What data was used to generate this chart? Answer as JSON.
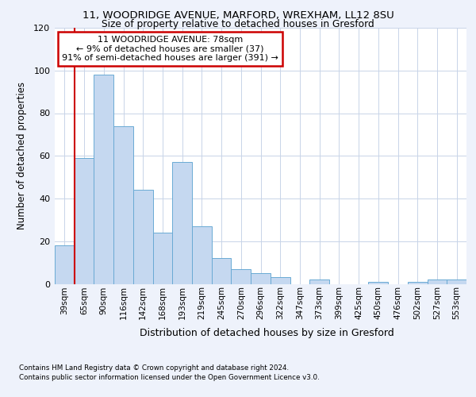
{
  "title1": "11, WOODRIDGE AVENUE, MARFORD, WREXHAM, LL12 8SU",
  "title2": "Size of property relative to detached houses in Gresford",
  "xlabel": "Distribution of detached houses by size in Gresford",
  "ylabel": "Number of detached properties",
  "categories": [
    "39sqm",
    "65sqm",
    "90sqm",
    "116sqm",
    "142sqm",
    "168sqm",
    "193sqm",
    "219sqm",
    "245sqm",
    "270sqm",
    "296sqm",
    "322sqm",
    "347sqm",
    "373sqm",
    "399sqm",
    "425sqm",
    "450sqm",
    "476sqm",
    "502sqm",
    "527sqm",
    "553sqm"
  ],
  "values": [
    18,
    59,
    98,
    74,
    44,
    24,
    57,
    27,
    12,
    7,
    5,
    3,
    0,
    2,
    0,
    0,
    1,
    0,
    1,
    2,
    2
  ],
  "bar_color": "#c5d8f0",
  "bar_edge_color": "#6aaad4",
  "annotation_text": "11 WOODRIDGE AVENUE: 78sqm\n← 9% of detached houses are smaller (37)\n91% of semi-detached houses are larger (391) →",
  "annotation_box_color": "#ffffff",
  "annotation_box_edge": "#cc0000",
  "ref_line_color": "#cc0000",
  "ylim": [
    0,
    120
  ],
  "yticks": [
    0,
    20,
    40,
    60,
    80,
    100,
    120
  ],
  "footer1": "Contains HM Land Registry data © Crown copyright and database right 2024.",
  "footer2": "Contains public sector information licensed under the Open Government Licence v3.0.",
  "bg_color": "#eef2fb",
  "plot_bg_color": "#ffffff",
  "grid_color": "#c8d4e8"
}
